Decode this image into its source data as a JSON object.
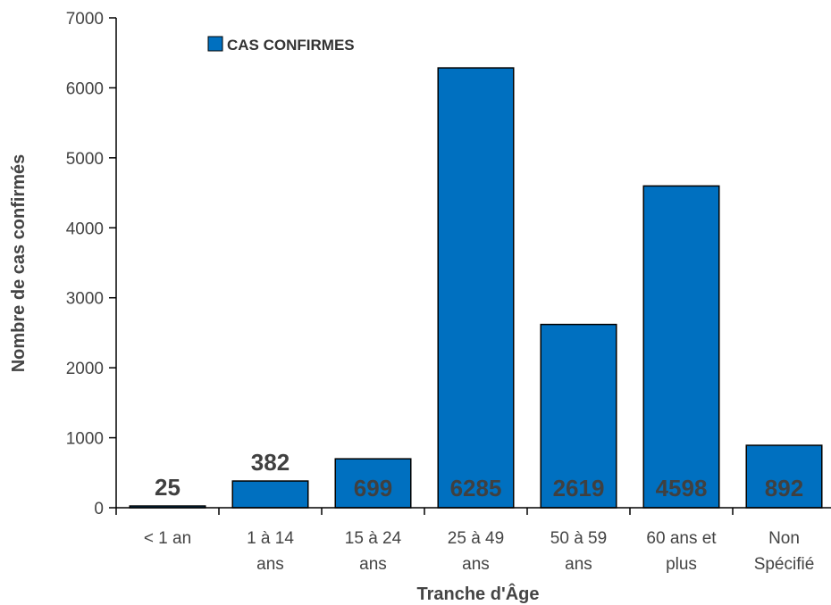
{
  "chart_data": {
    "type": "bar",
    "categories": [
      [
        "< 1 an"
      ],
      [
        "1 à 14",
        "ans"
      ],
      [
        "15 à 24",
        "ans"
      ],
      [
        "25 à 49",
        "ans"
      ],
      [
        "50 à 59",
        "ans"
      ],
      [
        "60 ans et",
        "plus"
      ],
      [
        "Non",
        "Spécifié"
      ]
    ],
    "series": [
      {
        "name": "CAS CONFIRMES",
        "values": [
          25,
          382,
          699,
          6285,
          2619,
          4598,
          892
        ]
      }
    ],
    "xlabel": "Tranche d'Âge",
    "ylabel": "Nombre de cas confirmés",
    "ylim": [
      0,
      7000
    ],
    "yticks": [
      0,
      1000,
      2000,
      3000,
      4000,
      5000,
      6000,
      7000
    ],
    "grid": false,
    "legend_position": "top-left",
    "data_labels": [
      "25",
      "382",
      "699",
      "6285",
      "2619",
      "4598",
      "892"
    ],
    "colors": {
      "bar_fill": "#0070C0",
      "bar_stroke": "#000000",
      "axis": "#000000",
      "tick_text": "#444444",
      "data_label_text": "#404040"
    }
  }
}
